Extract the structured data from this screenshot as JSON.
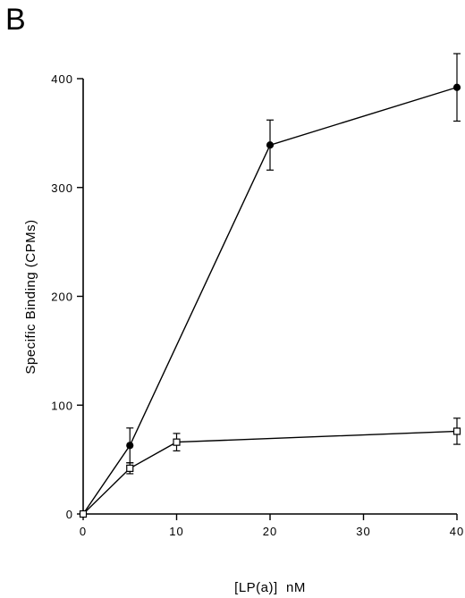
{
  "panel_label": "B",
  "chart_data": {
    "type": "line",
    "xlabel": "[LP(a)]  nM",
    "ylabel": "Specific   Binding   (CPMs)",
    "xlim": [
      0,
      40
    ],
    "ylim": [
      0,
      400
    ],
    "xticks": [
      0,
      10,
      20,
      30,
      40
    ],
    "yticks": [
      0,
      100,
      200,
      300,
      400
    ],
    "grid": false,
    "series": [
      {
        "marker": "filled-circle",
        "x": [
          0,
          5,
          20,
          40
        ],
        "y": [
          0,
          63,
          339,
          392
        ],
        "err": [
          0,
          16,
          23,
          31
        ]
      },
      {
        "marker": "open-square",
        "x": [
          0,
          5,
          10,
          40
        ],
        "y": [
          0,
          42,
          66,
          76
        ],
        "err": [
          0,
          5,
          8,
          12
        ]
      }
    ]
  }
}
